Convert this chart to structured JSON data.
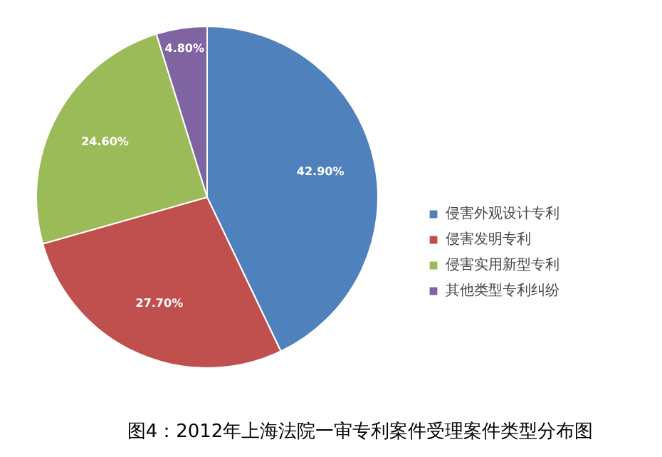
{
  "chart_data": {
    "type": "pie",
    "title": "图4：2012年上海法院一审专利案件受理案件类型分布图",
    "categories": [
      "侵害外观设计专利",
      "侵害发明专利",
      "侵害实用新型专利",
      "其他类型专利纠纷"
    ],
    "values": [
      42.9,
      27.7,
      24.6,
      4.8
    ],
    "colors": [
      "#4f81bd",
      "#c0504d",
      "#9bbb59",
      "#8064a2"
    ],
    "value_labels": [
      "42.90%",
      "27.70%",
      "24.60%",
      "4.80%"
    ],
    "legend": "right"
  }
}
